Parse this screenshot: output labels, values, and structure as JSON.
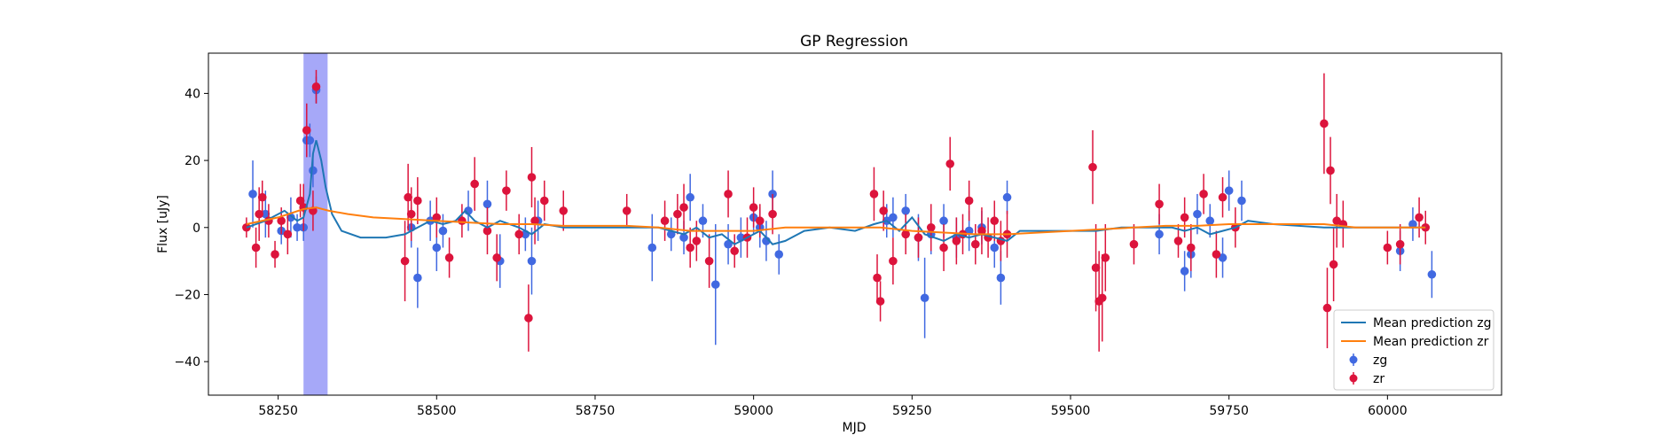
{
  "chart_data": {
    "type": "scatter",
    "title": "GP Regression",
    "xlabel": "MJD",
    "ylabel": "Flux [uJy]",
    "xlim": [
      58140,
      60180
    ],
    "ylim": [
      -50,
      52
    ],
    "xticks": [
      58250,
      58500,
      58750,
      59000,
      59250,
      59500,
      59750,
      60000
    ],
    "yticks": [
      -40,
      -20,
      0,
      20,
      40
    ],
    "grid": false,
    "legend_position": "lower-right",
    "highlight_band": {
      "x0": 58290,
      "x1": 58328,
      "color": "#a6a8f8"
    },
    "colors": {
      "zg": "#4169e1",
      "zr": "#dc143c",
      "mean_zg": "#1f77b4",
      "mean_zr": "#ff7f0e"
    },
    "legend": [
      {
        "label": "Mean prediction zg",
        "kind": "line",
        "color": "#1f77b4"
      },
      {
        "label": "Mean prediction zr",
        "kind": "line",
        "color": "#ff7f0e"
      },
      {
        "label": "zg",
        "kind": "errorbar",
        "color": "#4169e1"
      },
      {
        "label": "zr",
        "kind": "errorbar",
        "color": "#dc143c"
      }
    ],
    "series": [
      {
        "name": "Mean prediction zg",
        "kind": "line",
        "x": [
          58200,
          58230,
          58260,
          58280,
          58290,
          58300,
          58305,
          58310,
          58318,
          58325,
          58335,
          58350,
          58380,
          58420,
          58450,
          58470,
          58490,
          58510,
          58530,
          58545,
          58560,
          58580,
          58600,
          58630,
          58650,
          58670,
          58700,
          58760,
          58820,
          58850,
          58870,
          58890,
          58910,
          58930,
          58950,
          58970,
          58990,
          59010,
          59030,
          59050,
          59080,
          59120,
          59160,
          59190,
          59210,
          59230,
          59250,
          59270,
          59300,
          59320,
          59340,
          59360,
          59380,
          59400,
          59420,
          59460,
          59500,
          59540,
          59580,
          59620,
          59660,
          59680,
          59700,
          59720,
          59740,
          59760,
          59780,
          59820,
          59900,
          59960,
          60020,
          60060
        ],
        "y": [
          0,
          2,
          5,
          2,
          3,
          10,
          22,
          26,
          20,
          12,
          4,
          -1,
          -3,
          -3,
          -2,
          0,
          2,
          1,
          2,
          5,
          2,
          0,
          2,
          0,
          -2,
          1,
          0,
          0,
          0,
          0,
          -1,
          -2,
          0,
          -3,
          -2,
          -5,
          -3,
          -1,
          -5,
          -4,
          -1,
          0,
          -1,
          1,
          2,
          -1,
          3,
          -2,
          -4,
          -2,
          -3,
          -2,
          -3,
          -4,
          -1,
          -1,
          -1,
          -1,
          0,
          0,
          0,
          -1,
          0,
          -2,
          -1,
          0,
          2,
          1,
          0,
          0,
          0,
          0
        ]
      },
      {
        "name": "Mean prediction zr",
        "kind": "line",
        "x": [
          58200,
          58250,
          58290,
          58310,
          58330,
          58360,
          58400,
          58450,
          58500,
          58550,
          58600,
          58650,
          58700,
          58750,
          58800,
          58850,
          58900,
          58950,
          59000,
          59050,
          59100,
          59150,
          59200,
          59250,
          59300,
          59350,
          59400,
          59450,
          59500,
          59550,
          59600,
          59650,
          59700,
          59750,
          59800,
          59850,
          59900,
          59950,
          60000,
          60060
        ],
        "y": [
          1,
          3,
          5.5,
          6,
          5,
          4,
          3,
          2.5,
          2,
          1.5,
          1,
          1,
          0.5,
          0.5,
          0.5,
          0,
          -1,
          -1,
          -1,
          0,
          0,
          0,
          0,
          -1,
          -1.5,
          -2,
          -2,
          -1.5,
          -1,
          -0.5,
          0,
          0.5,
          0.5,
          1,
          1,
          1,
          1,
          0,
          0,
          0
        ]
      },
      {
        "name": "zg",
        "kind": "errorbar",
        "x": [
          58210,
          58230,
          58255,
          58270,
          58280,
          58290,
          58295,
          58300,
          58305,
          58310,
          58460,
          58470,
          58490,
          58500,
          58510,
          58550,
          58580,
          58600,
          58640,
          58650,
          58660,
          58840,
          58870,
          58890,
          58900,
          58920,
          58940,
          58960,
          58980,
          59000,
          59010,
          59020,
          59030,
          59040,
          59210,
          59220,
          59240,
          59260,
          59270,
          59280,
          59300,
          59320,
          59340,
          59360,
          59380,
          59390,
          59400,
          59640,
          59680,
          59690,
          59700,
          59720,
          59740,
          59750,
          59770,
          60020,
          60040,
          60070
        ],
        "y": [
          10,
          4,
          -1,
          3,
          0,
          0,
          26,
          26,
          17,
          41,
          0,
          -15,
          2,
          -6,
          -1,
          5,
          7,
          -10,
          -2,
          -10,
          2,
          -6,
          -2,
          -3,
          9,
          2,
          -17,
          -5,
          -3,
          3,
          0,
          -4,
          10,
          -8,
          2,
          3,
          5,
          -3,
          -21,
          -2,
          2,
          -3,
          -1,
          0,
          -6,
          -15,
          9,
          -2,
          -13,
          -8,
          4,
          2,
          -9,
          11,
          8,
          -7,
          1,
          -14
        ],
        "err": [
          10,
          7,
          4,
          6,
          4,
          4,
          5,
          5,
          5,
          4,
          6,
          9,
          6,
          7,
          5,
          6,
          7,
          8,
          5,
          10,
          6,
          10,
          5,
          5,
          7,
          5,
          18,
          6,
          6,
          5,
          6,
          6,
          7,
          6,
          5,
          6,
          5,
          7,
          12,
          6,
          5,
          6,
          6,
          5,
          6,
          8,
          5,
          6,
          6,
          7,
          6,
          5,
          6,
          6,
          6,
          6,
          5,
          7
        ]
      },
      {
        "name": "zr",
        "kind": "errorbar",
        "x": [
          58200,
          58215,
          58220,
          58225,
          58235,
          58245,
          58255,
          58265,
          58285,
          58290,
          58295,
          58305,
          58310,
          58450,
          58455,
          58460,
          58470,
          58500,
          58520,
          58540,
          58560,
          58580,
          58595,
          58610,
          58630,
          58645,
          58650,
          58655,
          58670,
          58700,
          58800,
          58860,
          58880,
          58890,
          58900,
          58910,
          58930,
          58960,
          58970,
          58990,
          59000,
          59010,
          59030,
          59190,
          59195,
          59200,
          59205,
          59220,
          59240,
          59260,
          59280,
          59300,
          59310,
          59320,
          59330,
          59340,
          59350,
          59360,
          59370,
          59380,
          59390,
          59400,
          59535,
          59540,
          59545,
          59550,
          59555,
          59600,
          59640,
          59670,
          59680,
          59690,
          59710,
          59730,
          59740,
          59760,
          59900,
          59905,
          59910,
          59915,
          59920,
          59930,
          60000,
          60020,
          60050,
          60060
        ],
        "y": [
          0,
          -6,
          4,
          9,
          2,
          -8,
          2,
          -2,
          8,
          6,
          29,
          5,
          42,
          -10,
          9,
          4,
          8,
          3,
          -9,
          2,
          13,
          -1,
          -9,
          11,
          -2,
          -27,
          15,
          2,
          8,
          5,
          5,
          2,
          4,
          6,
          -6,
          -4,
          -10,
          10,
          -7,
          -3,
          6,
          2,
          4,
          10,
          -15,
          -22,
          5,
          -10,
          -2,
          -3,
          0,
          -6,
          19,
          -4,
          -2,
          8,
          -5,
          -1,
          -3,
          2,
          -4,
          -2,
          18,
          -12,
          -22,
          -21,
          -9,
          -5,
          7,
          -4,
          3,
          -6,
          10,
          -8,
          9,
          0,
          31,
          -24,
          17,
          -11,
          2,
          1,
          -6,
          -5,
          3,
          0
        ],
        "err": [
          3,
          6,
          8,
          5,
          5,
          4,
          4,
          6,
          5,
          7,
          8,
          6,
          5,
          12,
          10,
          8,
          7,
          6,
          6,
          5,
          8,
          7,
          7,
          6,
          6,
          10,
          9,
          7,
          6,
          6,
          5,
          6,
          6,
          7,
          6,
          6,
          8,
          7,
          5,
          6,
          6,
          5,
          6,
          8,
          7,
          6,
          6,
          7,
          6,
          6,
          7,
          7,
          8,
          7,
          6,
          6,
          6,
          7,
          6,
          6,
          6,
          7,
          11,
          13,
          15,
          13,
          10,
          6,
          6,
          5,
          6,
          7,
          6,
          7,
          6,
          6,
          15,
          12,
          10,
          11,
          8,
          7,
          5,
          6,
          6,
          5
        ]
      }
    ]
  }
}
